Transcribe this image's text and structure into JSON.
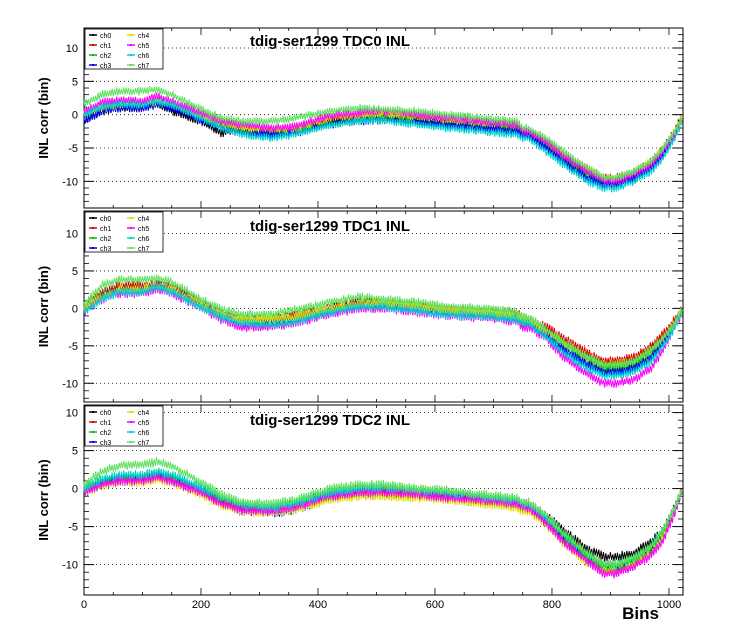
{
  "colors": {
    "ch0": "#000000",
    "ch1": "#e00000",
    "ch2": "#00c000",
    "ch3": "#0000ff",
    "ch4": "#e0e000",
    "ch5": "#ff00ff",
    "ch6": "#00d0d0",
    "ch7": "#60e060"
  },
  "chart_data": [
    {
      "type": "line",
      "title": "tdig-ser1299 TDC0 INL",
      "xlabel": "",
      "ylabel": "INL corr (bin)",
      "xlim": [
        0,
        1024
      ],
      "ylim": [
        -14,
        13
      ],
      "yticks": [
        10,
        5,
        0,
        -5,
        -10
      ],
      "xticks": [],
      "grid_y": true,
      "legend_position": "top-left",
      "legend": [
        "ch0",
        "ch1",
        "ch2",
        "ch3",
        "ch4",
        "ch5",
        "ch6",
        "ch7"
      ],
      "x": [
        0,
        30,
        60,
        100,
        125,
        150,
        200,
        235,
        270,
        320,
        360,
        420,
        470,
        510,
        570,
        620,
        680,
        740,
        750,
        760,
        790,
        820,
        860,
        890,
        910,
        940,
        970,
        990,
        1010,
        1023
      ],
      "series": [
        {
          "name": "ch0",
          "values": [
            -1,
            0.5,
            1.0,
            1.0,
            1.5,
            0.5,
            -1.0,
            -2.8,
            -2.0,
            -2.2,
            -2.5,
            -1.0,
            -0.8,
            -0.5,
            -0.8,
            -1.2,
            -1.8,
            -2.0,
            -2.5,
            -3.0,
            -4.5,
            -6.5,
            -8.5,
            -10.0,
            -9.5,
            -8.5,
            -7.0,
            -5.0,
            -2.5,
            0.0
          ]
        },
        {
          "name": "ch1",
          "values": [
            0,
            1.0,
            1.5,
            1.5,
            2.0,
            1.5,
            -0.2,
            -1.5,
            -2.0,
            -2.5,
            -2.0,
            -0.5,
            0.0,
            0.2,
            -0.2,
            -0.5,
            -1.0,
            -1.5,
            -2.5,
            -2.5,
            -4.0,
            -6.0,
            -8.0,
            -9.5,
            -9.5,
            -9.0,
            -7.5,
            -5.5,
            -3.0,
            -0.5
          ]
        },
        {
          "name": "ch2",
          "values": [
            0,
            1.2,
            1.5,
            1.5,
            2.0,
            1.5,
            -0.5,
            -1.5,
            -2.5,
            -2.8,
            -2.5,
            -1.5,
            -0.8,
            -0.5,
            -1.0,
            -1.5,
            -1.8,
            -2.0,
            -2.5,
            -3.0,
            -4.5,
            -6.5,
            -9.0,
            -10.0,
            -10.0,
            -9.0,
            -7.5,
            -5.5,
            -3.0,
            -0.5
          ]
        },
        {
          "name": "ch3",
          "values": [
            -1,
            0.5,
            1.0,
            1.0,
            1.5,
            1.0,
            -0.8,
            -2.0,
            -2.8,
            -3.0,
            -2.8,
            -1.5,
            -1.0,
            -0.8,
            -1.2,
            -1.5,
            -2.0,
            -2.5,
            -3.0,
            -3.2,
            -5.0,
            -7.0,
            -9.5,
            -10.5,
            -10.5,
            -9.5,
            -8.0,
            -6.0,
            -3.0,
            -0.5
          ]
        },
        {
          "name": "ch4",
          "values": [
            0,
            1.0,
            1.5,
            1.5,
            2.0,
            1.5,
            -0.2,
            -1.2,
            -2.0,
            -2.2,
            -2.0,
            -0.5,
            0.0,
            0.2,
            -0.2,
            -0.8,
            -1.2,
            -1.5,
            -2.2,
            -2.5,
            -4.0,
            -6.0,
            -8.0,
            -9.5,
            -9.5,
            -8.5,
            -7.0,
            -5.0,
            -2.5,
            0.0
          ]
        },
        {
          "name": "ch5",
          "values": [
            0.5,
            1.8,
            2.2,
            2.0,
            2.8,
            2.0,
            0.2,
            -1.0,
            -1.5,
            -2.0,
            -1.8,
            -0.2,
            0.3,
            0.5,
            0.0,
            -0.5,
            -1.0,
            -1.5,
            -2.5,
            -2.5,
            -4.0,
            -6.2,
            -8.5,
            -10.0,
            -10.0,
            -9.0,
            -7.5,
            -5.5,
            -3.0,
            -0.5
          ]
        },
        {
          "name": "ch6",
          "values": [
            0,
            1.2,
            1.5,
            1.5,
            2.0,
            1.5,
            -0.5,
            -2.0,
            -3.0,
            -3.5,
            -3.0,
            -1.5,
            -1.0,
            -0.8,
            -1.5,
            -2.0,
            -2.5,
            -3.0,
            -3.5,
            -3.5,
            -5.5,
            -7.5,
            -10.0,
            -11.0,
            -11.0,
            -10.0,
            -8.5,
            -6.5,
            -3.5,
            -1.0
          ]
        },
        {
          "name": "ch7",
          "values": [
            1.5,
            3.0,
            3.5,
            3.5,
            3.8,
            3.0,
            0.8,
            -0.5,
            -1.0,
            -1.0,
            -0.5,
            0.5,
            1.0,
            0.8,
            0.5,
            0.0,
            -0.5,
            -1.0,
            -2.0,
            -2.0,
            -3.5,
            -5.5,
            -8.0,
            -9.5,
            -9.5,
            -8.5,
            -7.0,
            -5.0,
            -2.5,
            -0.5
          ]
        }
      ]
    },
    {
      "type": "line",
      "title": "tdig-ser1299 TDC1 INL",
      "xlabel": "",
      "ylabel": "INL corr (bin)",
      "xlim": [
        0,
        1024
      ],
      "ylim": [
        -12.5,
        13
      ],
      "yticks": [
        10,
        5,
        0,
        -5,
        -10
      ],
      "xticks": [],
      "grid_y": true,
      "legend_position": "top-left",
      "legend": [
        "ch0",
        "ch1",
        "ch2",
        "ch3",
        "ch4",
        "ch5",
        "ch6",
        "ch7"
      ],
      "x": [
        0,
        30,
        60,
        100,
        125,
        150,
        200,
        235,
        270,
        320,
        360,
        420,
        470,
        510,
        570,
        620,
        680,
        740,
        750,
        760,
        790,
        820,
        860,
        890,
        910,
        940,
        970,
        990,
        1010,
        1023
      ],
      "series": [
        {
          "name": "ch0",
          "values": [
            0,
            1.5,
            2.5,
            2.5,
            3.0,
            2.5,
            0.5,
            -1.0,
            -1.5,
            -1.5,
            -1.0,
            0.0,
            0.8,
            0.8,
            0.2,
            -0.2,
            -0.5,
            -1.0,
            -1.5,
            -1.5,
            -3.0,
            -4.5,
            -6.5,
            -7.5,
            -7.5,
            -7.0,
            -5.5,
            -4.0,
            -2.0,
            0.0
          ]
        },
        {
          "name": "ch1",
          "values": [
            0,
            2.0,
            3.0,
            3.0,
            3.2,
            2.8,
            0.8,
            -0.8,
            -1.5,
            -1.5,
            -1.0,
            0.0,
            0.8,
            1.0,
            0.5,
            0.0,
            -0.2,
            -0.5,
            -1.2,
            -1.5,
            -2.5,
            -4.0,
            -6.0,
            -7.0,
            -7.0,
            -6.5,
            -5.0,
            -3.5,
            -1.5,
            0.0
          ]
        },
        {
          "name": "ch2",
          "values": [
            0,
            1.8,
            2.5,
            2.5,
            3.0,
            2.5,
            0.5,
            -1.0,
            -1.8,
            -1.8,
            -1.5,
            -0.2,
            0.5,
            0.5,
            0.0,
            -0.5,
            -0.8,
            -1.2,
            -1.8,
            -1.8,
            -3.0,
            -4.8,
            -6.8,
            -8.0,
            -8.0,
            -7.5,
            -6.0,
            -4.5,
            -2.0,
            0.0
          ]
        },
        {
          "name": "ch3",
          "values": [
            0,
            1.5,
            2.5,
            2.5,
            3.0,
            2.5,
            0.5,
            -1.2,
            -2.0,
            -2.0,
            -1.5,
            -0.2,
            0.5,
            0.5,
            0.0,
            -0.5,
            -1.0,
            -1.5,
            -2.0,
            -2.0,
            -3.5,
            -5.5,
            -7.5,
            -8.5,
            -8.5,
            -8.0,
            -6.5,
            -4.5,
            -2.0,
            0.0
          ]
        },
        {
          "name": "ch4",
          "values": [
            0,
            1.5,
            2.5,
            2.5,
            3.0,
            2.5,
            0.5,
            -1.0,
            -1.5,
            -1.5,
            -1.2,
            0.0,
            0.5,
            0.8,
            0.2,
            -0.2,
            -0.5,
            -1.0,
            -1.5,
            -1.5,
            -3.0,
            -4.5,
            -6.5,
            -7.5,
            -7.5,
            -7.0,
            -5.5,
            -4.0,
            -2.0,
            0.0
          ]
        },
        {
          "name": "ch5",
          "values": [
            -0.5,
            1.2,
            2.0,
            2.0,
            2.5,
            2.0,
            0.0,
            -1.5,
            -2.5,
            -2.5,
            -2.0,
            -0.8,
            0.0,
            0.0,
            -0.5,
            -1.0,
            -1.2,
            -1.8,
            -2.5,
            -2.5,
            -4.0,
            -6.5,
            -8.8,
            -10.0,
            -10.0,
            -9.5,
            -8.0,
            -5.5,
            -2.5,
            -0.5
          ]
        },
        {
          "name": "ch6",
          "values": [
            -0.5,
            1.2,
            2.2,
            2.2,
            2.8,
            2.2,
            0.2,
            -1.2,
            -2.0,
            -2.2,
            -1.8,
            -0.5,
            0.2,
            0.2,
            -0.3,
            -0.8,
            -1.0,
            -1.5,
            -2.0,
            -2.0,
            -3.8,
            -6.0,
            -8.0,
            -9.0,
            -9.0,
            -8.5,
            -7.0,
            -5.0,
            -2.5,
            -0.5
          ]
        },
        {
          "name": "ch7",
          "values": [
            0.5,
            3.0,
            3.8,
            3.8,
            4.0,
            3.5,
            1.2,
            -0.2,
            -0.8,
            -0.8,
            -0.2,
            0.8,
            1.5,
            1.2,
            0.8,
            0.3,
            0.0,
            -0.5,
            -1.2,
            -1.2,
            -2.8,
            -4.5,
            -6.5,
            -7.5,
            -7.5,
            -7.0,
            -5.5,
            -4.0,
            -2.0,
            0.0
          ]
        }
      ]
    },
    {
      "type": "line",
      "title": "tdig-ser1299 TDC2 INL",
      "xlabel": "Bins",
      "ylabel": "INL corr (bin)",
      "xlim": [
        0,
        1024
      ],
      "ylim": [
        -14,
        11
      ],
      "yticks": [
        10,
        5,
        0,
        -5,
        -10
      ],
      "xticks": [
        0,
        200,
        400,
        600,
        800,
        1000
      ],
      "grid_y": true,
      "legend_position": "top-left",
      "legend": [
        "ch0",
        "ch1",
        "ch2",
        "ch3",
        "ch4",
        "ch5",
        "ch6",
        "ch7"
      ],
      "x": [
        0,
        30,
        60,
        100,
        125,
        150,
        200,
        235,
        270,
        320,
        360,
        420,
        470,
        510,
        570,
        620,
        680,
        740,
        750,
        760,
        790,
        820,
        860,
        890,
        910,
        940,
        970,
        990,
        1010,
        1023
      ],
      "series": [
        {
          "name": "ch0",
          "values": [
            0,
            1.0,
            1.5,
            1.5,
            2.0,
            1.5,
            0.0,
            -1.5,
            -2.5,
            -2.5,
            -2.0,
            -0.5,
            0.0,
            0.0,
            -0.2,
            -0.5,
            -1.0,
            -1.5,
            -2.0,
            -2.0,
            -3.5,
            -5.5,
            -8.0,
            -9.0,
            -9.0,
            -8.5,
            -7.0,
            -5.5,
            -2.5,
            0.0
          ]
        },
        {
          "name": "ch1",
          "values": [
            0,
            0.8,
            1.2,
            1.2,
            1.8,
            1.2,
            -0.2,
            -1.5,
            -2.5,
            -2.8,
            -2.2,
            -0.8,
            -0.2,
            -0.2,
            -0.5,
            -0.8,
            -1.2,
            -1.8,
            -2.2,
            -2.2,
            -4.0,
            -6.0,
            -8.5,
            -10.0,
            -10.0,
            -9.0,
            -7.5,
            -5.5,
            -2.5,
            0.0
          ]
        },
        {
          "name": "ch2",
          "values": [
            0,
            1.0,
            1.5,
            1.5,
            2.0,
            1.5,
            -0.2,
            -1.8,
            -2.8,
            -3.0,
            -2.5,
            -1.0,
            -0.5,
            -0.5,
            -0.8,
            -1.0,
            -1.5,
            -2.0,
            -2.5,
            -2.5,
            -4.0,
            -6.5,
            -9.0,
            -10.5,
            -10.5,
            -9.5,
            -8.0,
            -6.0,
            -3.0,
            0.0
          ]
        },
        {
          "name": "ch3",
          "values": [
            -0.5,
            0.5,
            1.0,
            1.0,
            1.5,
            1.0,
            -0.5,
            -2.0,
            -3.0,
            -3.2,
            -2.8,
            -1.2,
            -0.8,
            -0.8,
            -1.0,
            -1.2,
            -1.8,
            -2.2,
            -2.8,
            -2.8,
            -4.5,
            -7.0,
            -9.5,
            -11.0,
            -11.0,
            -10.0,
            -8.5,
            -6.5,
            -3.0,
            0.0
          ]
        },
        {
          "name": "ch4",
          "values": [
            -0.5,
            0.3,
            0.8,
            0.8,
            1.2,
            0.8,
            -0.8,
            -2.2,
            -3.0,
            -3.2,
            -2.8,
            -1.5,
            -1.0,
            -1.0,
            -1.2,
            -1.5,
            -2.0,
            -2.5,
            -3.0,
            -3.0,
            -4.8,
            -7.2,
            -9.8,
            -11.0,
            -11.0,
            -10.0,
            -8.5,
            -6.5,
            -3.0,
            0.0
          ]
        },
        {
          "name": "ch5",
          "values": [
            -0.5,
            0.5,
            1.0,
            1.0,
            1.5,
            1.0,
            -0.5,
            -2.0,
            -2.8,
            -3.0,
            -2.5,
            -1.0,
            -0.5,
            -0.5,
            -0.8,
            -1.2,
            -1.5,
            -2.0,
            -2.5,
            -2.5,
            -4.5,
            -7.0,
            -9.5,
            -11.2,
            -11.2,
            -10.2,
            -8.8,
            -6.8,
            -3.2,
            0.0
          ]
        },
        {
          "name": "ch6",
          "values": [
            0,
            1.2,
            1.8,
            1.8,
            2.2,
            1.8,
            0.2,
            -1.2,
            -2.2,
            -2.5,
            -2.0,
            -0.5,
            0.0,
            0.2,
            -0.2,
            -0.5,
            -1.0,
            -1.5,
            -2.0,
            -2.0,
            -3.8,
            -6.0,
            -8.5,
            -10.0,
            -10.0,
            -9.0,
            -7.5,
            -5.5,
            -2.5,
            0.0
          ]
        },
        {
          "name": "ch7",
          "values": [
            0.5,
            2.2,
            3.0,
            3.2,
            3.5,
            3.0,
            0.8,
            -0.8,
            -1.8,
            -2.0,
            -1.5,
            0.0,
            0.5,
            0.5,
            0.0,
            -0.2,
            -0.8,
            -1.2,
            -1.8,
            -1.8,
            -3.5,
            -5.8,
            -8.5,
            -10.0,
            -10.0,
            -9.0,
            -7.5,
            -5.5,
            -2.5,
            0.0
          ]
        }
      ]
    }
  ]
}
